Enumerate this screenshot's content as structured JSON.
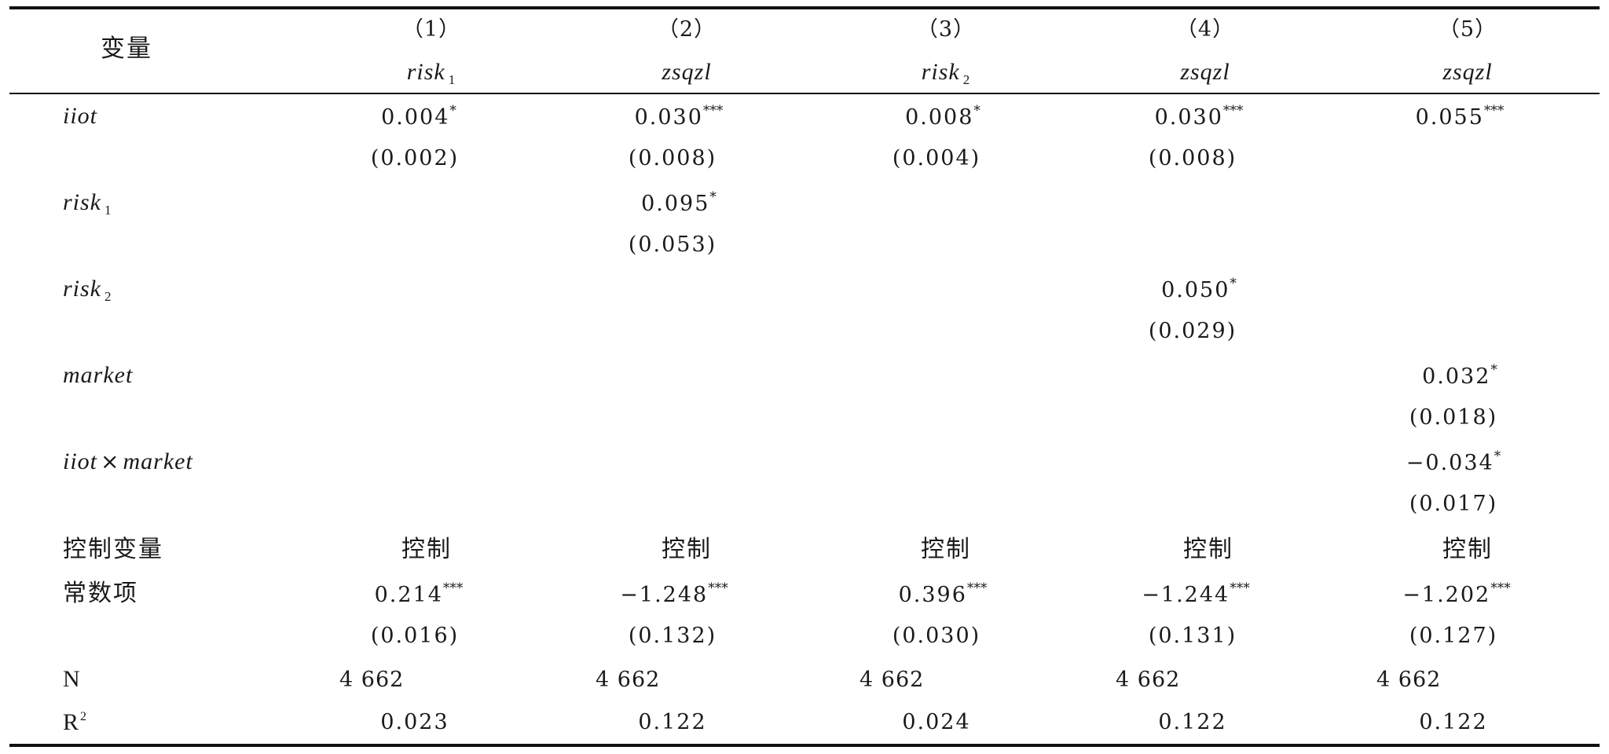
{
  "table": {
    "header": {
      "variable_label": "变量",
      "columns": [
        {
          "num": "（1）",
          "dep": "risk",
          "sub": "1"
        },
        {
          "num": "（2）",
          "dep": "zsqzl",
          "sub": ""
        },
        {
          "num": "（3）",
          "dep": "risk",
          "sub": "2"
        },
        {
          "num": "（4）",
          "dep": "zsqzl",
          "sub": ""
        },
        {
          "num": "（5）",
          "dep": "zsqzl",
          "sub": ""
        }
      ]
    },
    "rows": {
      "iiot": {
        "label": "iiot",
        "coef": [
          {
            "v": "0.004",
            "s": "*"
          },
          {
            "v": "0.030",
            "s": "***"
          },
          {
            "v": "0.008",
            "s": "*"
          },
          {
            "v": "0.030",
            "s": "***"
          },
          {
            "v": "0.055",
            "s": "***"
          }
        ],
        "se": [
          "(0.002)",
          "(0.008)",
          "(0.004)",
          "(0.008)",
          ""
        ]
      },
      "risk1": {
        "label": "risk",
        "sub": "1",
        "coef": {
          "v": "0.095",
          "s": "*"
        },
        "se": "(0.053)"
      },
      "risk2": {
        "label": "risk",
        "sub": "2",
        "coef": {
          "v": "0.050",
          "s": "*"
        },
        "se": "(0.029)"
      },
      "market": {
        "label": "market",
        "coef": {
          "v": "0.032",
          "s": "*"
        },
        "se": "(0.018)"
      },
      "interaction": {
        "label_a": "iiot",
        "times": "×",
        "label_b": "market",
        "coef": {
          "v": "−0.034",
          "s": "*"
        },
        "se": "(0.017)"
      },
      "controls": {
        "label": "控制变量",
        "values": [
          "控制",
          "控制",
          "控制",
          "控制",
          "控制"
        ]
      },
      "constant": {
        "label": "常数项",
        "coef": [
          {
            "v": "0.214",
            "s": "***"
          },
          {
            "v": "−1.248",
            "s": "***"
          },
          {
            "v": "0.396",
            "s": "***"
          },
          {
            "v": "−1.244",
            "s": "***"
          },
          {
            "v": "−1.202",
            "s": "***"
          }
        ],
        "se": [
          "(0.016)",
          "(0.132)",
          "(0.030)",
          "(0.131)",
          "(0.127)"
        ]
      },
      "n": {
        "label": "N",
        "values": [
          "4 662",
          "4 662",
          "4 662",
          "4 662",
          "4 662"
        ]
      },
      "r2": {
        "label": "R",
        "sup": "2",
        "values": [
          "0.023",
          "0.122",
          "0.024",
          "0.122",
          "0.122"
        ]
      }
    }
  }
}
